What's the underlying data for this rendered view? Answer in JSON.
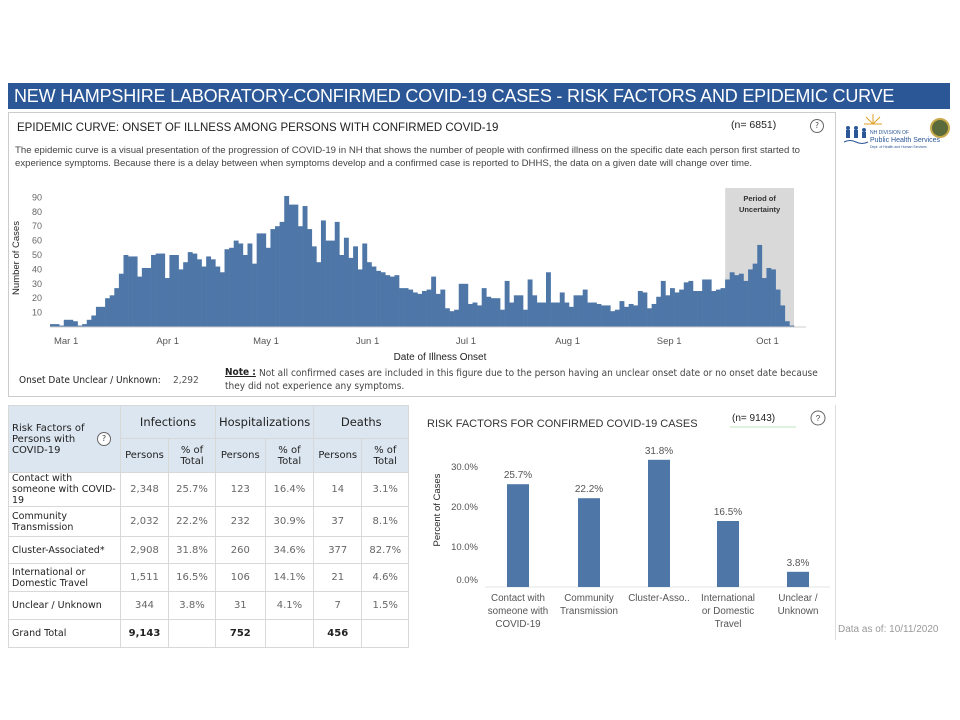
{
  "title": "NEW HAMPSHIRE LABORATORY-CONFIRMED COVID-19 CASES - RISK FACTORS AND EPIDEMIC CURVE",
  "logo": {
    "text": "NH DIVISION OF Public Health Services",
    "sub": "Department of Health and Human Services"
  },
  "epi": {
    "title": "EPIDEMIC CURVE: ONSET OF ILLNESS AMONG PERSONS WITH CONFIRMED COVID-19",
    "n": "(n= 6851)",
    "help": "?",
    "description": "The epidemic curve is a visual presentation of the progression of COVID-19 in NH that shows the number of people with confirmed illness on the specific date each person first started to experience symptoms. Because there is a delay between when symptoms develop and a confirmed case is reported to DHHS, the data on a given date will change over time.",
    "unknown_label": "Onset Date Unclear / Unknown:",
    "unknown_value": "2,292",
    "note_label": "Note :",
    "note": "Not all confirmed cases are included in this figure due to the person having an unclear onset date or no onset date because they did not experience any symptoms."
  },
  "chart_data": [
    {
      "type": "bar",
      "title": "EPIDEMIC CURVE: ONSET OF ILLNESS AMONG PERSONS WITH CONFIRMED COVID-19",
      "xlabel": "Date of Illness Onset",
      "ylabel": "Number of Cases",
      "ylim": [
        0,
        95
      ],
      "yticks": [
        10,
        20,
        30,
        40,
        50,
        60,
        70,
        80,
        90
      ],
      "xticks": [
        {
          "label": "Mar 1",
          "day": 4
        },
        {
          "label": "Apr 1",
          "day": 35
        },
        {
          "label": "May 1",
          "day": 65
        },
        {
          "label": "Jun 1",
          "day": 96
        },
        {
          "label": "Jul 1",
          "day": 126
        },
        {
          "label": "Aug 1",
          "day": 157
        },
        {
          "label": "Sep 1",
          "day": 188
        },
        {
          "label": "Oct 1",
          "day": 218
        }
      ],
      "x_start": "2020-02-26",
      "x_end": "2020-10-10",
      "day_span": 227,
      "annotation": {
        "label1": "Period of",
        "label2": "Uncertainty",
        "start_day": 206,
        "end_day": 227
      },
      "values": [
        2,
        2,
        1,
        5,
        5,
        4,
        1,
        2,
        5,
        8,
        14,
        14,
        20,
        22,
        27,
        37,
        50,
        49,
        49,
        35,
        41,
        41,
        50,
        51,
        51,
        34,
        50,
        50,
        40,
        45,
        52,
        51,
        47,
        42,
        49,
        47,
        42,
        38,
        54,
        55,
        60,
        58,
        50,
        58,
        44,
        65,
        65,
        55,
        68,
        70,
        73,
        91,
        85,
        85,
        70,
        84,
        68,
        56,
        45,
        74,
        60,
        60,
        73,
        50,
        62,
        48,
        56,
        40,
        58,
        45,
        42,
        39,
        38,
        36,
        35,
        36,
        27,
        27,
        26,
        24,
        23,
        25,
        26,
        35,
        23,
        26,
        13,
        11,
        12,
        30,
        30,
        16,
        17,
        15,
        27,
        21,
        20,
        20,
        12,
        32,
        17,
        22,
        22,
        12,
        33,
        22,
        17,
        17,
        38,
        17,
        17,
        24,
        17,
        14,
        22,
        22,
        26,
        17,
        17,
        16,
        15,
        15,
        11,
        12,
        18,
        14,
        16,
        15,
        25,
        24,
        13,
        16,
        21,
        32,
        22,
        27,
        24,
        26,
        31,
        32,
        25,
        25,
        33,
        33,
        25,
        26,
        27,
        33,
        38,
        36,
        37,
        32,
        40,
        44,
        57,
        34,
        41,
        40,
        26,
        15,
        4,
        1
      ]
    },
    {
      "type": "bar",
      "title": "RISK FACTORS FOR CONFIRMED COVID-19 CASES",
      "n": "(n= 9143)",
      "ylabel": "Percent of Cases",
      "ylim": [
        0,
        32
      ],
      "yticks": [
        "0.0%",
        "10.0%",
        "20.0%",
        "30.0%"
      ],
      "ytick_values": [
        0,
        10,
        20,
        30
      ],
      "categories": [
        [
          "Contact with",
          "someone with",
          "COVID-19"
        ],
        [
          "Community",
          "Transmission"
        ],
        [
          "Cluster-Asso.."
        ],
        [
          "International",
          "or Domestic",
          "Travel"
        ],
        [
          "Unclear /",
          "Unknown"
        ]
      ],
      "values": [
        25.7,
        22.2,
        31.8,
        16.5,
        3.8
      ],
      "labels": [
        "25.7%",
        "22.2%",
        "31.8%",
        "16.5%",
        "3.8%"
      ]
    }
  ],
  "table": {
    "corner": "Risk Factors of Persons with COVID-19",
    "groups": [
      "Infections",
      "Hospitalizations",
      "Deaths"
    ],
    "sub": [
      "Persons",
      "% of Total"
    ],
    "rows": [
      [
        "Contact with someone with COVID-19",
        "2,348",
        "25.7%",
        "123",
        "16.4%",
        "14",
        "3.1%"
      ],
      [
        "Community Transmission",
        "2,032",
        "22.2%",
        "232",
        "30.9%",
        "37",
        "8.1%"
      ],
      [
        "Cluster-Associated*",
        "2,908",
        "31.8%",
        "260",
        "34.6%",
        "377",
        "82.7%"
      ],
      [
        "International or Domestic Travel",
        "1,511",
        "16.5%",
        "106",
        "14.1%",
        "21",
        "4.6%"
      ],
      [
        "Unclear / Unknown",
        "344",
        "3.8%",
        "31",
        "4.1%",
        "7",
        "1.5%"
      ],
      [
        "Grand Total",
        "9,143",
        "",
        "752",
        "",
        "456",
        ""
      ]
    ]
  },
  "as_of": "Data as of:  10/11/2020",
  "colors": {
    "bar": "#4e77a8",
    "title": "#2b5797",
    "shade": "#d9d9d9"
  }
}
